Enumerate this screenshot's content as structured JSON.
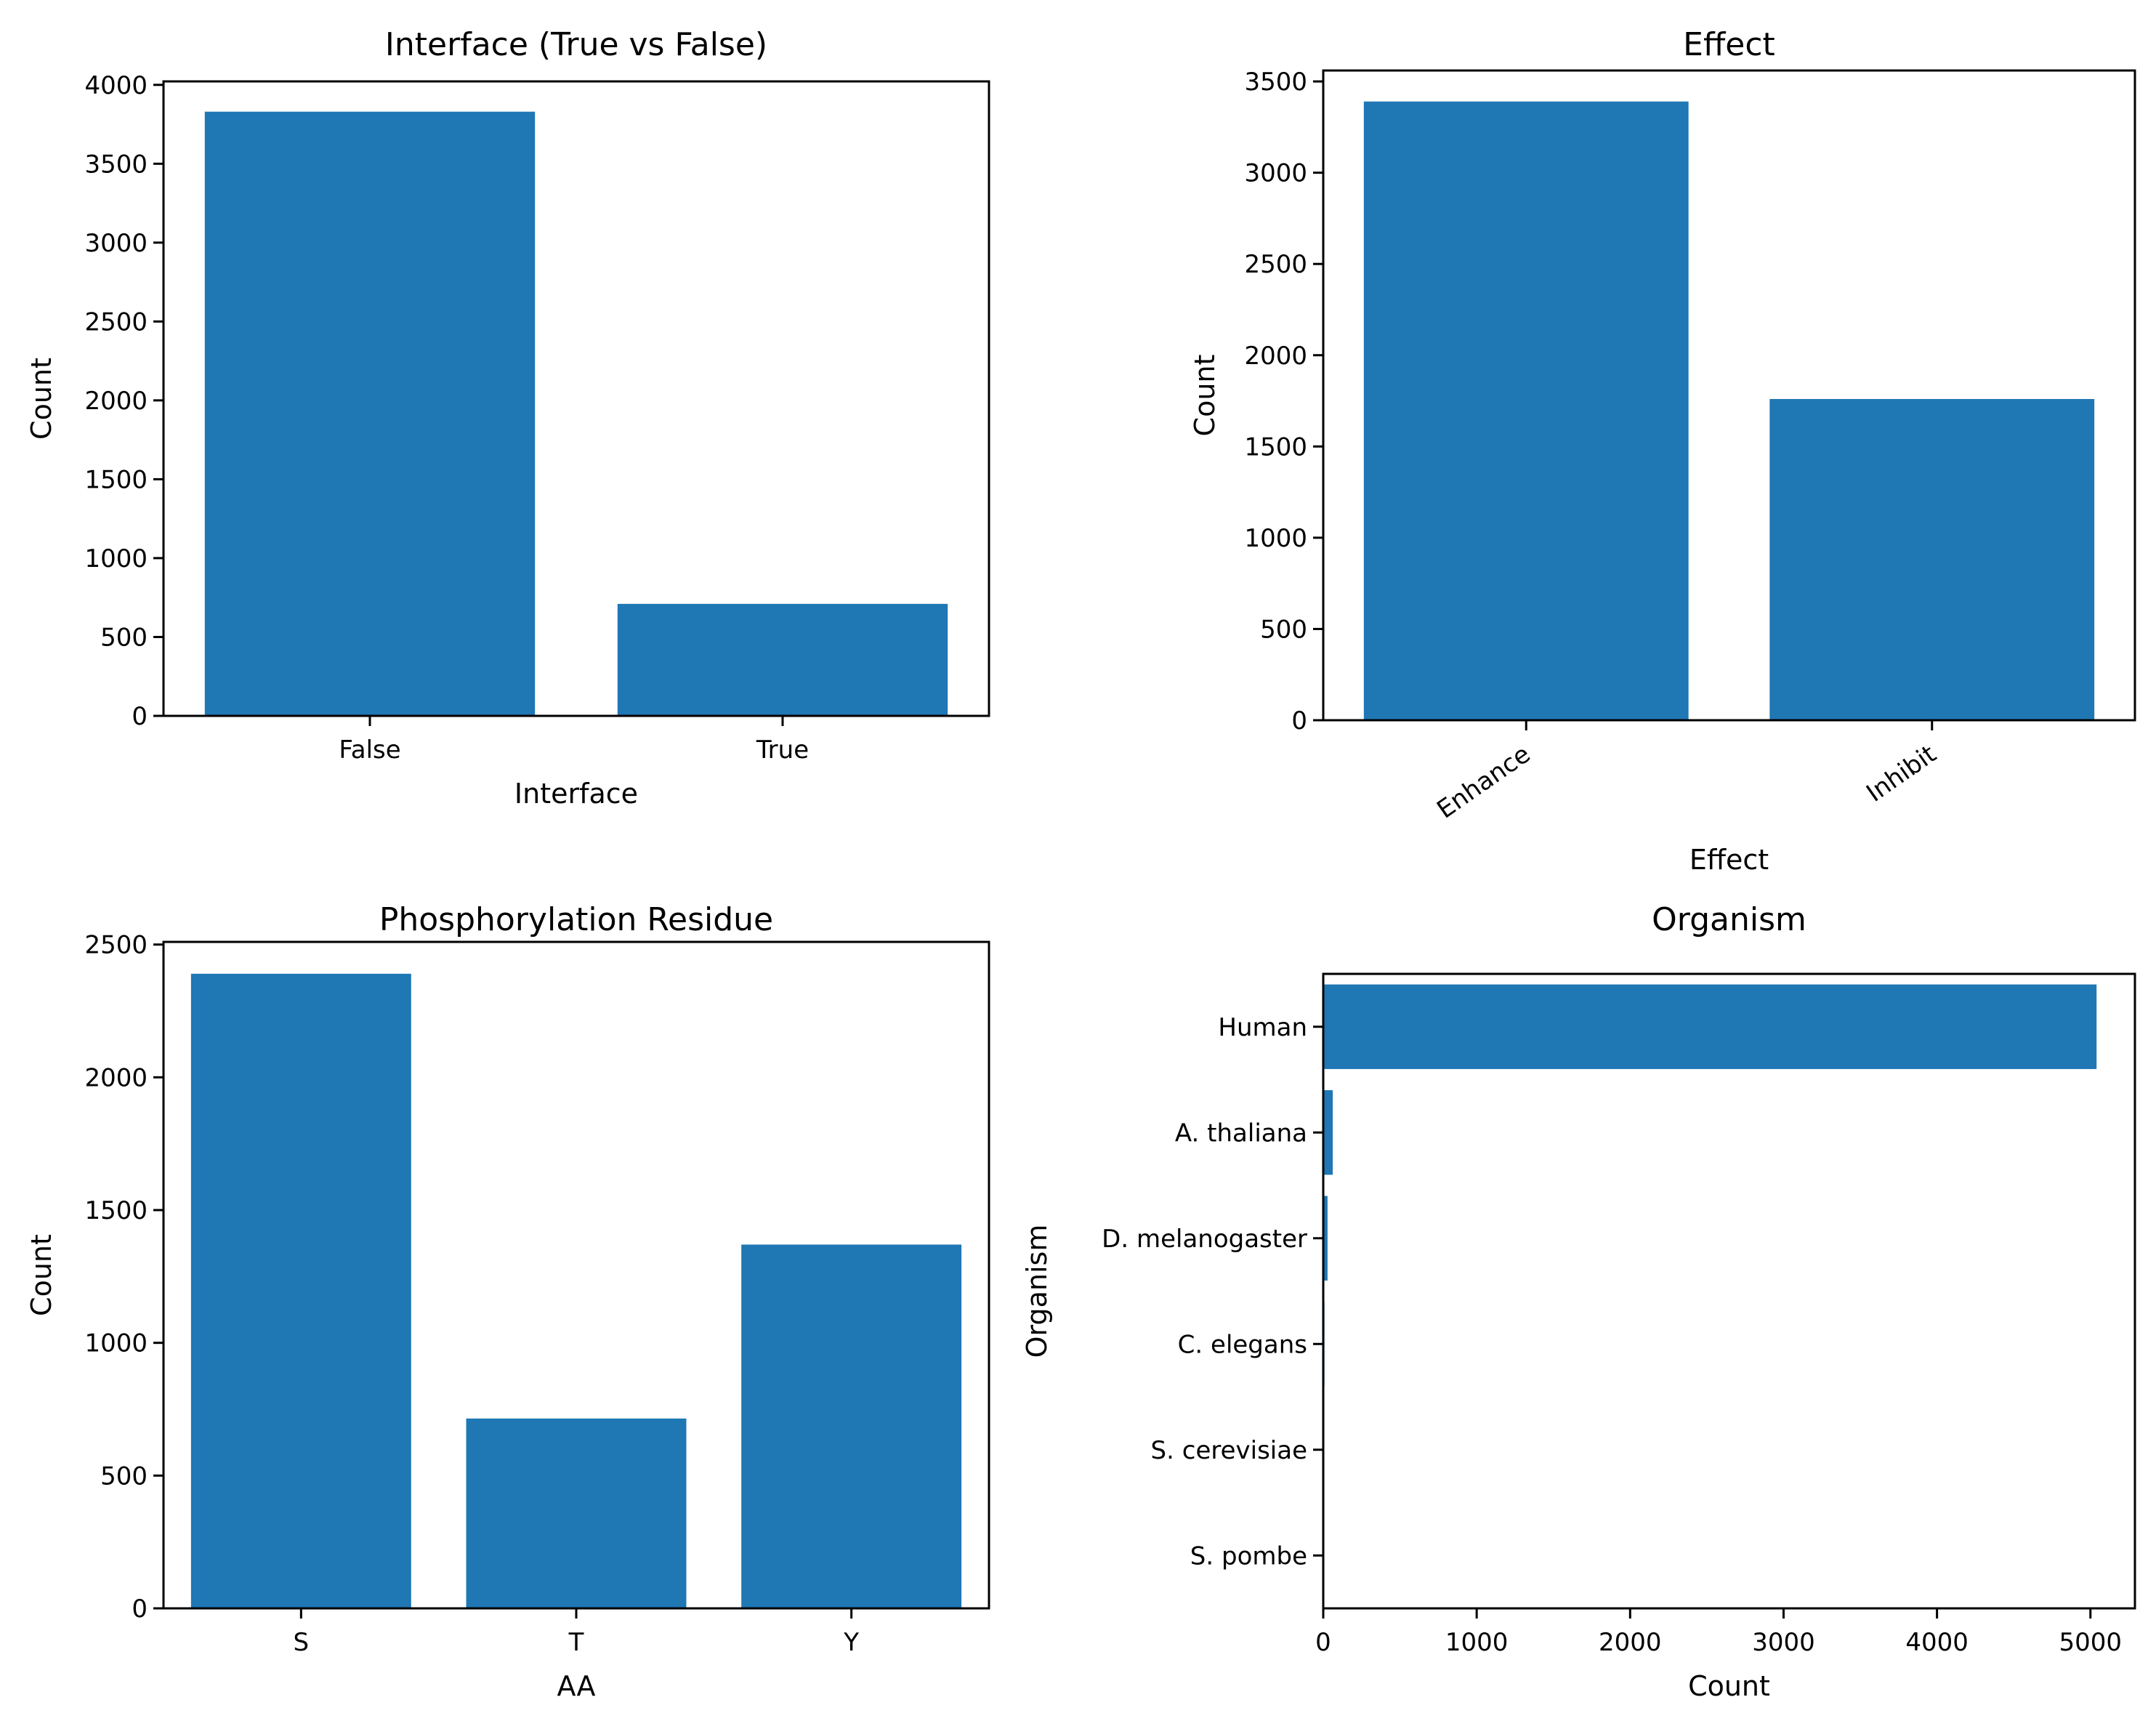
{
  "figure": {
    "background": "#ffffff",
    "bar_color": "#1f77b4",
    "spine_color": "#000000",
    "text_color": "#000000"
  },
  "chart_data": [
    {
      "id": "interface",
      "type": "bar",
      "title": "Interface (True vs False)",
      "xlabel": "Interface",
      "ylabel": "Count",
      "categories": [
        "False",
        "True"
      ],
      "values": [
        3830,
        710
      ],
      "ylim": [
        0,
        4022
      ],
      "yticks": [
        0,
        500,
        1000,
        1500,
        2000,
        2500,
        3000,
        3500,
        4000
      ],
      "grid": false,
      "legend": "none",
      "xtick_rotation": 0,
      "axes": {
        "left": 225,
        "top": 112,
        "right": 1361,
        "bottom": 985
      },
      "title_y": 76,
      "xlabel_y": 1105,
      "ylabel_x": 70
    },
    {
      "id": "effect",
      "type": "bar",
      "title": "Effect",
      "xlabel": "Effect",
      "ylabel": "Count",
      "categories": [
        "Enhance",
        "Inhibit"
      ],
      "values": [
        3390,
        1760
      ],
      "ylim": [
        0,
        3560
      ],
      "yticks": [
        0,
        500,
        1000,
        1500,
        2000,
        2500,
        3000,
        3500
      ],
      "grid": false,
      "legend": "none",
      "xtick_rotation": 35,
      "axes": {
        "left": 1821,
        "top": 97,
        "right": 2938,
        "bottom": 991
      },
      "title_y": 76,
      "xlabel_y": 1196,
      "ylabel_x": 1671
    },
    {
      "id": "residue",
      "type": "bar",
      "title": "Phosphorylation Residue",
      "xlabel": "AA",
      "ylabel": "Count",
      "categories": [
        "S",
        "T",
        "Y"
      ],
      "values": [
        2390,
        715,
        1370
      ],
      "ylim": [
        0,
        2510
      ],
      "yticks": [
        0,
        500,
        1000,
        1500,
        2000,
        2500
      ],
      "grid": false,
      "legend": "none",
      "xtick_rotation": 0,
      "axes": {
        "left": 225,
        "top": 1296,
        "right": 1361,
        "bottom": 2213
      },
      "title_y": 1280,
      "xlabel_y": 2333,
      "ylabel_x": 70
    },
    {
      "id": "organism",
      "type": "barh",
      "title": "Organism",
      "xlabel": "Count",
      "ylabel": "Organism",
      "categories": [
        "Human",
        "A. thaliana",
        "D. melanogaster",
        "C. elegans",
        "S. cerevisiae",
        "S. pombe"
      ],
      "values": [
        5040,
        62,
        28,
        8,
        3,
        2
      ],
      "xlim": [
        0,
        5290
      ],
      "xticks": [
        0,
        1000,
        2000,
        3000,
        4000,
        5000
      ],
      "grid": false,
      "legend": "none",
      "xtick_rotation": 0,
      "axes": {
        "left": 1821,
        "top": 1340,
        "right": 2938,
        "bottom": 2213
      },
      "title_y": 1280,
      "xlabel_y": 2333,
      "ylabel_x": 1440
    }
  ]
}
